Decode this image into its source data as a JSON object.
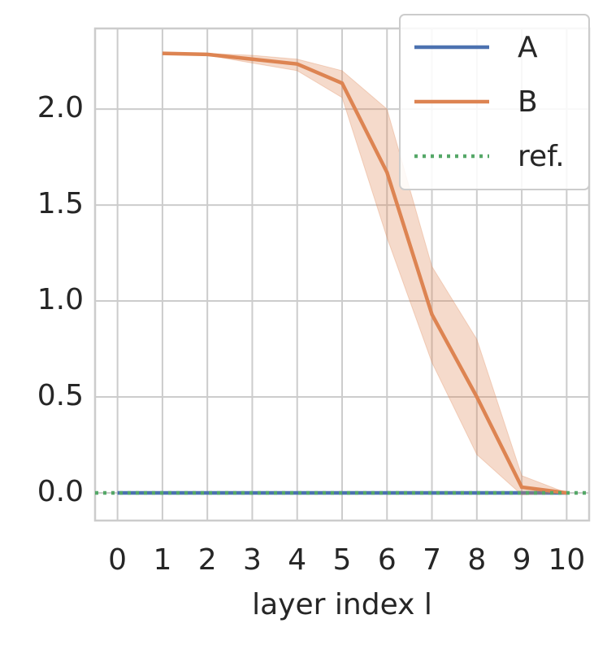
{
  "chart_data": {
    "type": "line",
    "x": [
      0,
      1,
      2,
      3,
      4,
      5,
      6,
      7,
      8,
      9,
      10
    ],
    "xlabel": "layer index l",
    "series": [
      {
        "name": "A",
        "color": "#4c72b0",
        "values": [
          0,
          0,
          0,
          0,
          0,
          0,
          0,
          0,
          0,
          0,
          0
        ]
      },
      {
        "name": "B",
        "color": "#dd8452",
        "values": [
          null,
          2.29,
          2.285,
          2.26,
          2.235,
          2.135,
          1.67,
          0.93,
          0.5,
          0.03,
          0.0
        ],
        "lower": [
          null,
          2.29,
          2.28,
          2.24,
          2.2,
          2.06,
          1.33,
          0.68,
          0.2,
          -0.01,
          0.0
        ],
        "upper": [
          null,
          2.29,
          2.29,
          2.28,
          2.26,
          2.2,
          2.0,
          1.18,
          0.8,
          0.09,
          0.0
        ]
      }
    ],
    "reference": {
      "name": "ref.",
      "color": "#55a868",
      "value": 0
    },
    "xlim": [
      -0.5,
      10.5
    ],
    "xticks": [
      0,
      1,
      2,
      3,
      4,
      5,
      6,
      7,
      8,
      9,
      10
    ],
    "ylim": [
      -0.144,
      2.42
    ],
    "yticks": [
      {
        "value": 0,
        "label": "0.0"
      },
      {
        "value": 0.5,
        "label": "0.5"
      },
      {
        "value": 1,
        "label": "1.0"
      },
      {
        "value": 1.5,
        "label": "1.5"
      },
      {
        "value": 2,
        "label": "2.0"
      }
    ],
    "grid": true,
    "legend": "upper right"
  }
}
